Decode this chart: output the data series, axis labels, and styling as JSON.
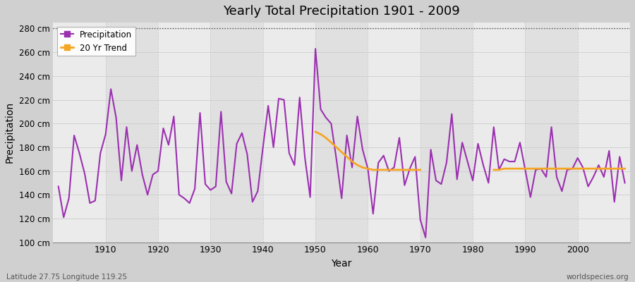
{
  "title": "Yearly Total Precipitation 1901 - 2009",
  "xlabel": "Year",
  "ylabel": "Precipitation",
  "bottom_left": "Latitude 27.75 Longitude 119.25",
  "bottom_right": "worldspecies.org",
  "ylim": [
    100,
    285
  ],
  "yticks": [
    100,
    120,
    140,
    160,
    180,
    200,
    220,
    240,
    260,
    280
  ],
  "ytick_labels": [
    "100 cm",
    "120 cm",
    "140 cm",
    "160 cm",
    "180 cm",
    "200 cm",
    "220 cm",
    "240 cm",
    "260 cm",
    "280 cm"
  ],
  "xlim": [
    1900,
    2010
  ],
  "xticks": [
    1910,
    1920,
    1930,
    1940,
    1950,
    1960,
    1970,
    1980,
    1990,
    2000
  ],
  "precip_color": "#9b30b0",
  "trend_color": "#f5a623",
  "fig_bg": "#d8d8d8",
  "plot_bg_light": "#e8e8e8",
  "plot_bg_dark": "#d8d8d8",
  "years": [
    1901,
    1902,
    1903,
    1904,
    1905,
    1906,
    1907,
    1908,
    1909,
    1910,
    1911,
    1912,
    1913,
    1914,
    1915,
    1916,
    1917,
    1918,
    1919,
    1920,
    1921,
    1922,
    1923,
    1924,
    1925,
    1926,
    1927,
    1928,
    1929,
    1930,
    1931,
    1932,
    1933,
    1934,
    1935,
    1936,
    1937,
    1938,
    1939,
    1940,
    1941,
    1942,
    1943,
    1944,
    1945,
    1946,
    1947,
    1948,
    1949,
    1950,
    1951,
    1952,
    1953,
    1954,
    1955,
    1956,
    1957,
    1958,
    1959,
    1960,
    1961,
    1962,
    1963,
    1964,
    1965,
    1966,
    1967,
    1968,
    1969,
    1970,
    1971,
    1972,
    1973,
    1974,
    1975,
    1976,
    1977,
    1978,
    1979,
    1980,
    1981,
    1982,
    1983,
    1984,
    1985,
    1986,
    1987,
    1988,
    1989,
    1990,
    1991,
    1992,
    1993,
    1994,
    1995,
    1996,
    1997,
    1998,
    1999,
    2000,
    2001,
    2002,
    2003,
    2004,
    2005,
    2006,
    2007,
    2008,
    2009
  ],
  "precipitation": [
    147,
    121,
    137,
    190,
    175,
    158,
    133,
    135,
    175,
    191,
    229,
    205,
    152,
    197,
    160,
    182,
    157,
    140,
    157,
    160,
    196,
    182,
    206,
    140,
    137,
    133,
    145,
    209,
    149,
    144,
    147,
    210,
    151,
    141,
    183,
    192,
    174,
    134,
    143,
    180,
    215,
    180,
    221,
    220,
    175,
    165,
    222,
    171,
    138,
    263,
    212,
    205,
    200,
    170,
    137,
    190,
    163,
    206,
    178,
    162,
    124,
    167,
    173,
    160,
    163,
    188,
    148,
    162,
    172,
    119,
    104,
    178,
    152,
    149,
    167,
    208,
    153,
    184,
    168,
    152,
    183,
    165,
    150,
    197,
    161,
    170,
    168,
    168,
    184,
    161,
    138,
    161,
    162,
    155,
    197,
    155,
    143,
    161,
    162,
    171,
    163,
    147,
    155,
    165,
    155,
    177,
    134,
    172,
    150
  ],
  "trend_years_1": [
    1950,
    1951,
    1952,
    1953,
    1954,
    1955,
    1956,
    1957,
    1958,
    1959,
    1960,
    1961,
    1962,
    1963,
    1964,
    1965,
    1966,
    1967,
    1968,
    1969,
    1970
  ],
  "trend_values_1": [
    193,
    191,
    188,
    184,
    180,
    176,
    172,
    168,
    165,
    163,
    162,
    161,
    161,
    161,
    161,
    161,
    161,
    161,
    161,
    161,
    161
  ],
  "trend_years_2": [
    1984,
    1985,
    1986,
    1987,
    1988,
    1989,
    1990,
    1991,
    1992,
    1993,
    1994,
    1995,
    1996,
    1997,
    1998,
    1999,
    2000,
    2001,
    2002,
    2003,
    2004,
    2005,
    2006,
    2007,
    2008,
    2009
  ],
  "trend_values_2": [
    161,
    161,
    162,
    162,
    162,
    162,
    162,
    162,
    162,
    162,
    162,
    162,
    162,
    162,
    162,
    162,
    162,
    162,
    162,
    162,
    162,
    162,
    162,
    162,
    162,
    162
  ]
}
